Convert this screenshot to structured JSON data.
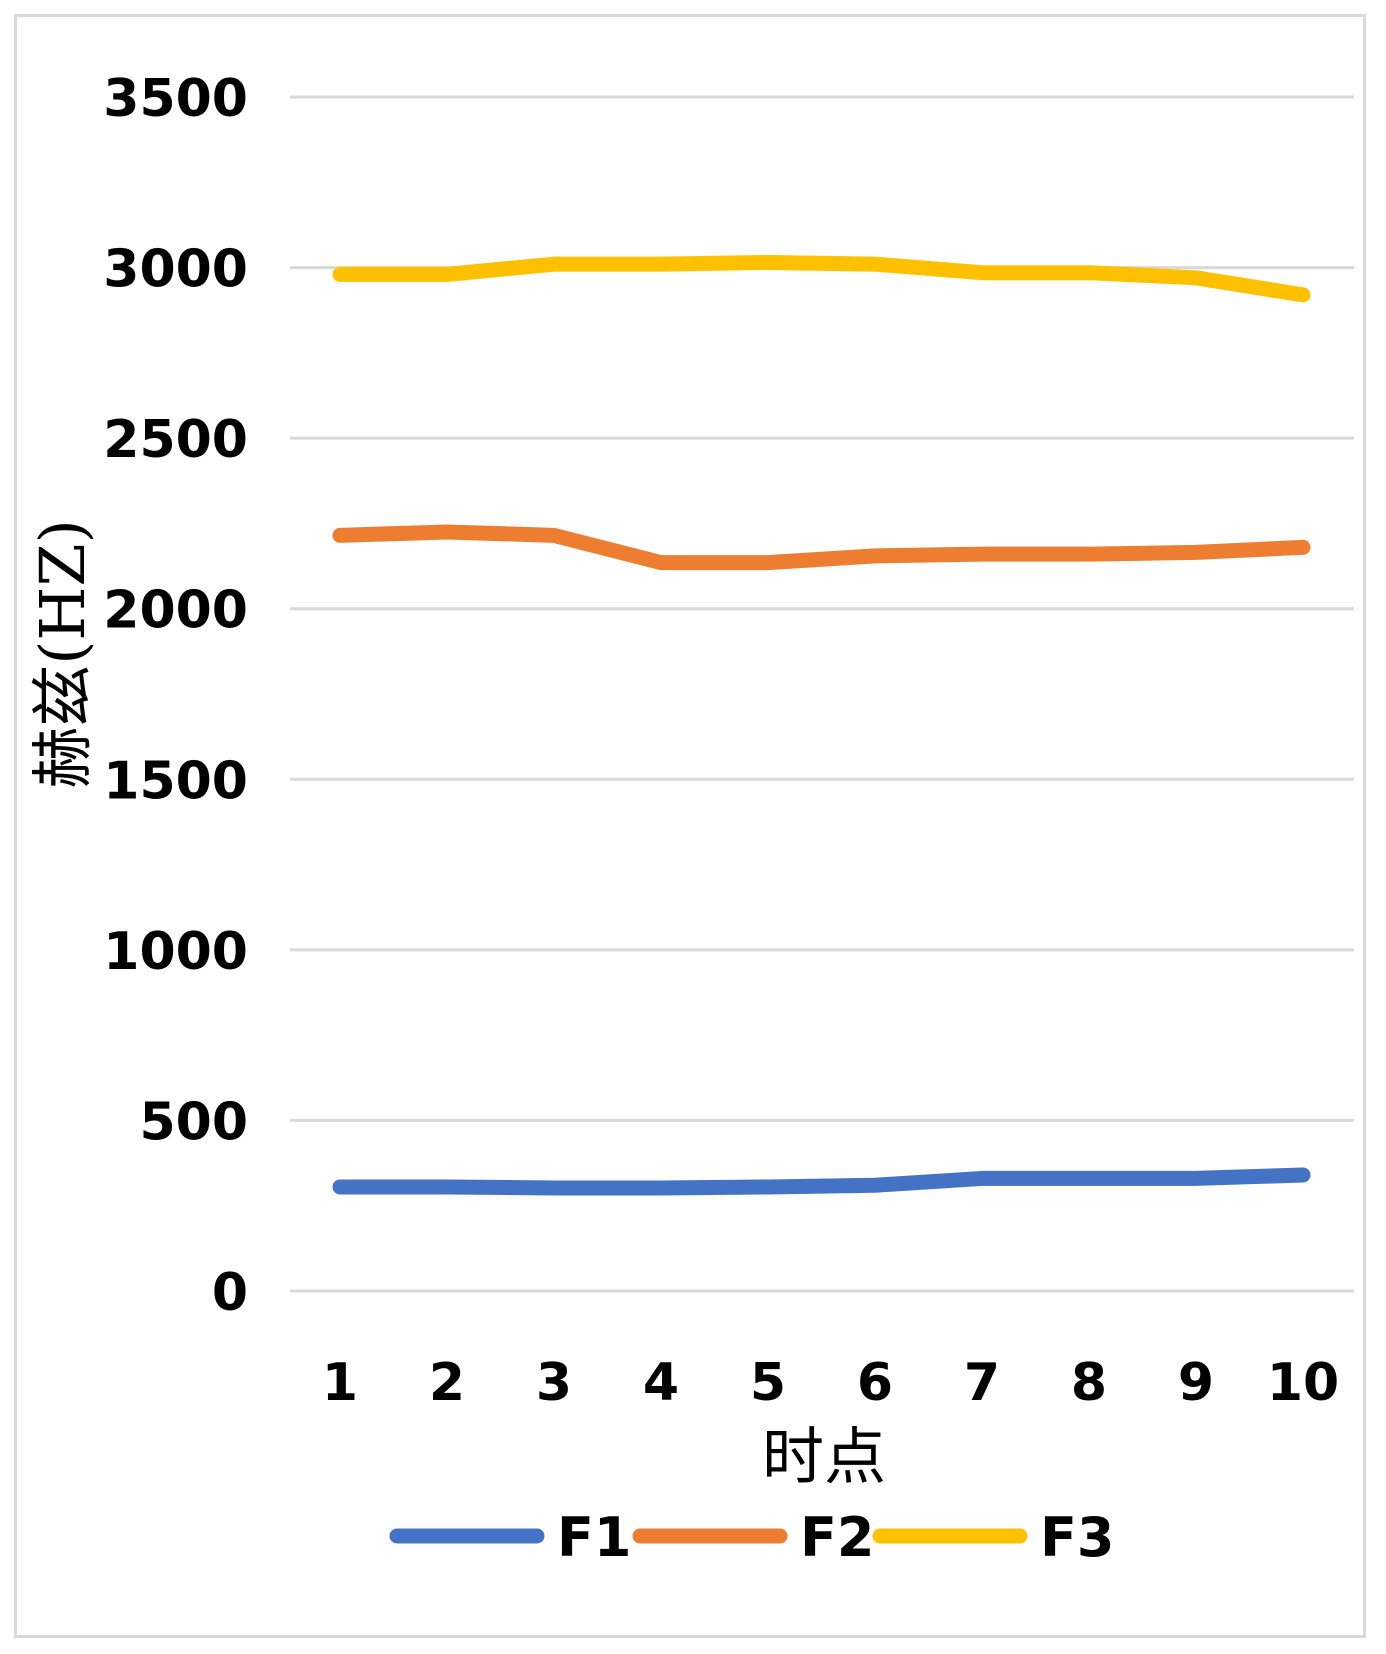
{
  "chart_data": {
    "type": "line",
    "xlabel": "时点",
    "ylabel": "赫兹(HZ)",
    "categories": [
      "1",
      "2",
      "3",
      "4",
      "5",
      "6",
      "7",
      "8",
      "9",
      "10"
    ],
    "y_ticks": [
      "0",
      "500",
      "1000",
      "1500",
      "2000",
      "2500",
      "3000",
      "3500"
    ],
    "ylim": [
      0,
      3500
    ],
    "grid": true,
    "legend_position": "bottom",
    "series": [
      {
        "name": "F1",
        "color": "#4472C4",
        "values": [
          305,
          305,
          302,
          302,
          305,
          310,
          330,
          330,
          330,
          340
        ]
      },
      {
        "name": "F2",
        "color": "#ED7D31",
        "values": [
          2215,
          2225,
          2215,
          2135,
          2135,
          2155,
          2160,
          2160,
          2165,
          2180
        ]
      },
      {
        "name": "F3",
        "color": "#FFC000",
        "values": [
          2980,
          2980,
          3010,
          3010,
          3015,
          3010,
          2985,
          2985,
          2970,
          2920
        ]
      }
    ]
  }
}
